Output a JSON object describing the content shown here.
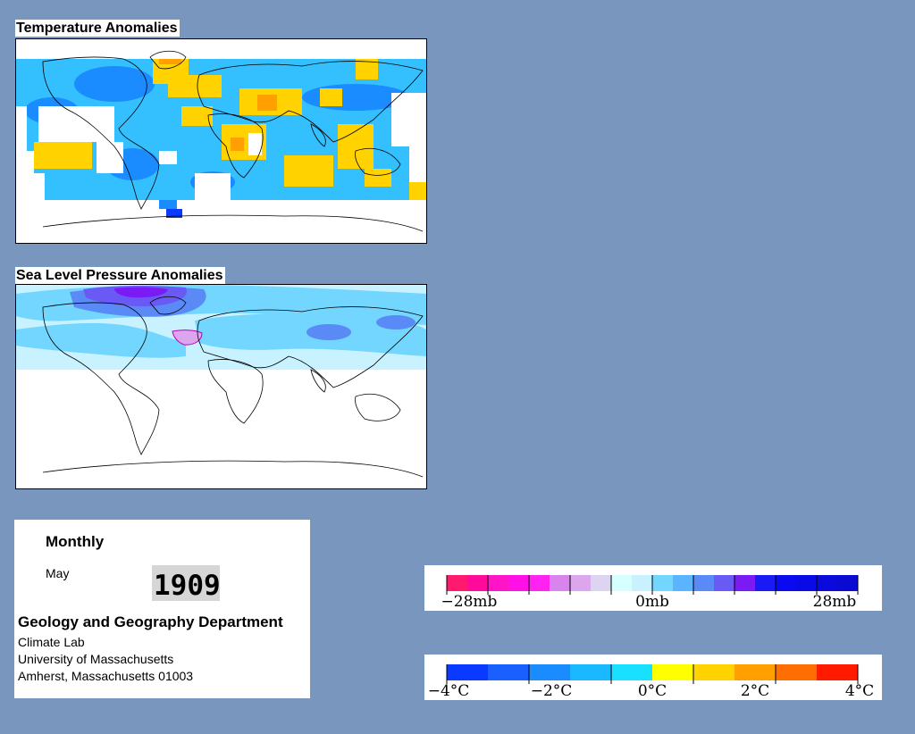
{
  "panels": {
    "temperature": {
      "title": "Temperature Anomalies"
    },
    "pressure": {
      "title": "Sea Level Pressure Anomalies"
    }
  },
  "info": {
    "mode": "Monthly",
    "month": "May",
    "year": "1909",
    "department": "Geology and Geography Department",
    "address_lines": [
      "Climate Lab",
      "University of Massachusetts",
      "Amherst, Massachusetts 01003"
    ]
  },
  "legends": {
    "pressure": {
      "labels": [
        "−28mb",
        "0mb",
        "28mb"
      ],
      "colors": [
        "#ff1a6e",
        "#ff0a9a",
        "#ff14c8",
        "#ff10e6",
        "#ff22f0",
        "#d784ec",
        "#dba6ec",
        "#dcd4f0",
        "#d6ffff",
        "#c8f2ff",
        "#72d6ff",
        "#5cb4ff",
        "#5a8af5",
        "#6a5af5",
        "#7a1af5",
        "#1a1af5",
        "#0a0af0",
        "#0a0ae6",
        "#0a0adc",
        "#0a0ad2"
      ]
    },
    "temperature": {
      "labels": [
        "−4°C",
        "−2°C",
        "0°C",
        "2°C",
        "4°C"
      ],
      "colors": [
        "#0a3aff",
        "#1a60ff",
        "#1a8cff",
        "#1ab8ff",
        "#1ae0ff",
        "#ffff00",
        "#ffd200",
        "#ffa000",
        "#ff6e00",
        "#ff1a00"
      ]
    }
  }
}
